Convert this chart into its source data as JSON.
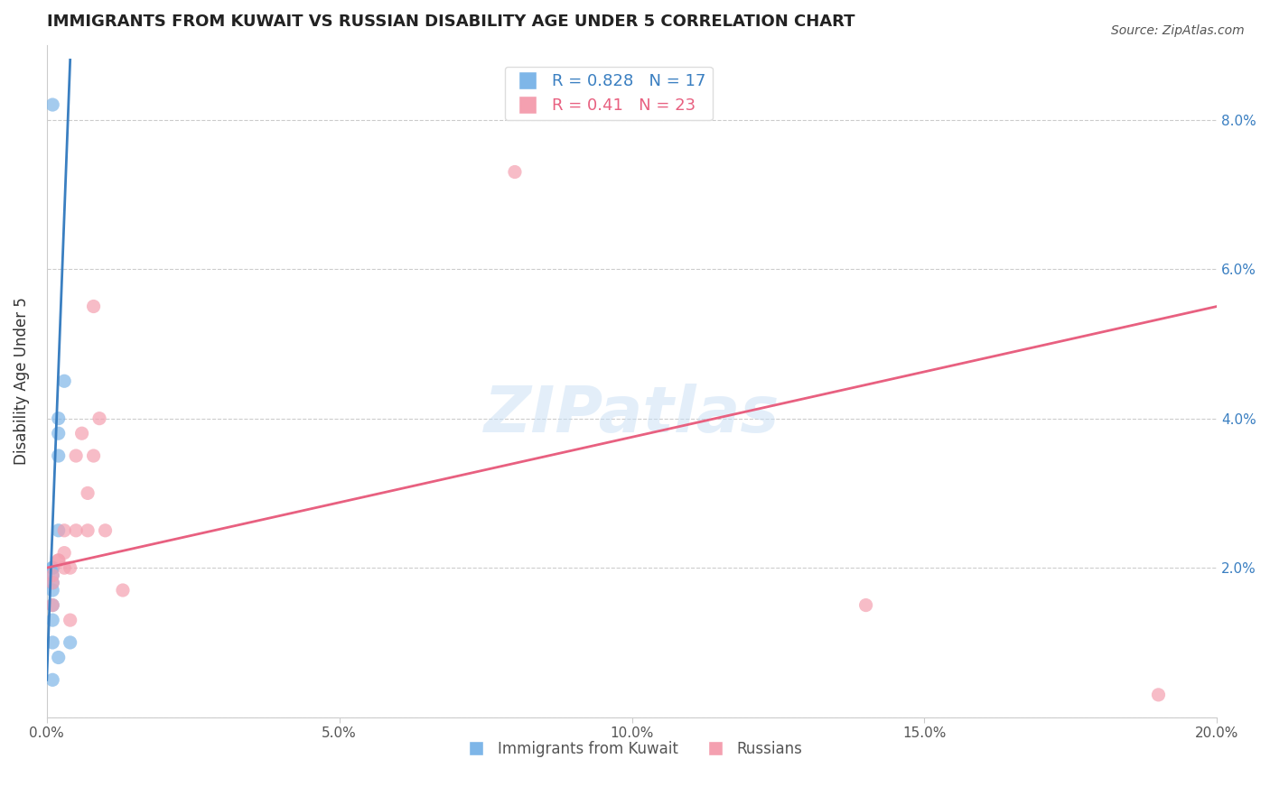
{
  "title": "IMMIGRANTS FROM KUWAIT VS RUSSIAN DISABILITY AGE UNDER 5 CORRELATION CHART",
  "source": "Source: ZipAtlas.com",
  "ylabel": "Disability Age Under 5",
  "xlim": [
    0.0,
    0.2
  ],
  "ylim": [
    0.0,
    0.09
  ],
  "yticks": [
    0.0,
    0.02,
    0.04,
    0.06,
    0.08
  ],
  "xticks": [
    0.0,
    0.05,
    0.1,
    0.15,
    0.2
  ],
  "xtick_labels": [
    "0.0%",
    "5.0%",
    "10.0%",
    "15.0%",
    "20.0%"
  ],
  "ytick_labels": [
    "",
    "2.0%",
    "4.0%",
    "6.0%",
    "8.0%"
  ],
  "kuwait_R": 0.828,
  "kuwait_N": 17,
  "russian_R": 0.41,
  "russian_N": 23,
  "kuwait_color": "#7EB6E8",
  "kuwait_line_color": "#3A7FC1",
  "russian_color": "#F4A0B0",
  "russian_line_color": "#E86080",
  "watermark": "ZIPatlas",
  "kuwait_scatter_x": [
    0.001,
    0.001,
    0.001,
    0.001,
    0.001,
    0.001,
    0.001,
    0.001,
    0.001,
    0.001,
    0.002,
    0.002,
    0.002,
    0.002,
    0.002,
    0.003,
    0.004
  ],
  "kuwait_scatter_y": [
    0.082,
    0.02,
    0.02,
    0.019,
    0.018,
    0.017,
    0.015,
    0.013,
    0.01,
    0.005,
    0.04,
    0.038,
    0.035,
    0.025,
    0.008,
    0.045,
    0.01
  ],
  "russian_scatter_x": [
    0.001,
    0.001,
    0.001,
    0.002,
    0.002,
    0.003,
    0.003,
    0.003,
    0.004,
    0.004,
    0.005,
    0.005,
    0.006,
    0.007,
    0.007,
    0.008,
    0.008,
    0.009,
    0.01,
    0.013,
    0.08,
    0.14,
    0.19
  ],
  "russian_scatter_y": [
    0.019,
    0.018,
    0.015,
    0.021,
    0.021,
    0.02,
    0.022,
    0.025,
    0.02,
    0.013,
    0.025,
    0.035,
    0.038,
    0.025,
    0.03,
    0.055,
    0.035,
    0.04,
    0.025,
    0.017,
    0.073,
    0.015,
    0.003
  ],
  "kuwait_line_x": [
    0.0,
    0.004
  ],
  "kuwait_line_y": [
    0.005,
    0.088
  ],
  "russian_line_x": [
    0.0,
    0.2
  ],
  "russian_line_y": [
    0.02,
    0.055
  ]
}
